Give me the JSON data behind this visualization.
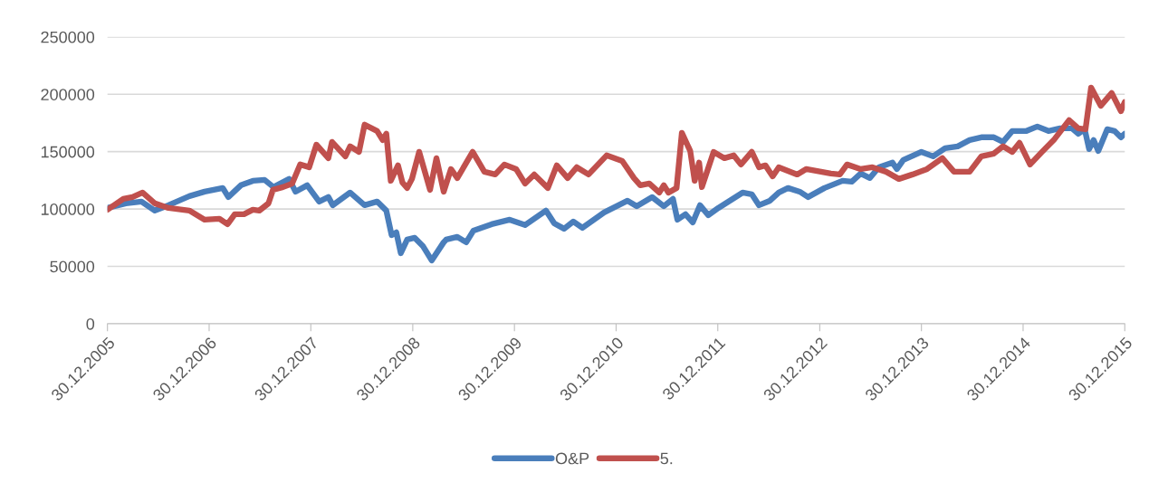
{
  "chart_data": {
    "type": "line",
    "ylim": [
      0,
      250000
    ],
    "yticks": [
      0,
      50000,
      100000,
      150000,
      200000,
      250000
    ],
    "xlim": [
      "2005-12-30",
      "2015-12-30"
    ],
    "xticks": [
      {
        "value": "2005-12-30",
        "label": "30.12.2005"
      },
      {
        "value": "2006-12-30",
        "label": "30.12.2006"
      },
      {
        "value": "2007-12-30",
        "label": "30.12.2007"
      },
      {
        "value": "2008-12-30",
        "label": "30.12.2008"
      },
      {
        "value": "2009-12-30",
        "label": "30.12.2009"
      },
      {
        "value": "2010-12-30",
        "label": "30.12.2010"
      },
      {
        "value": "2011-12-30",
        "label": "30.12.2011"
      },
      {
        "value": "2012-12-30",
        "label": "30.12.2012"
      },
      {
        "value": "2013-12-30",
        "label": "30.12.2013"
      },
      {
        "value": "2014-12-30",
        "label": "30.12.2014"
      },
      {
        "value": "2015-12-30",
        "label": "30.12.2015"
      }
    ],
    "grid": "y",
    "legend": "bottom",
    "marker": "none",
    "line_style": "solid",
    "series": [
      {
        "name": "O&P",
        "color": "#4a7ebb",
        "x": [
          "2005-12-30",
          "2006-03-06",
          "2006-05-01",
          "2006-06-18",
          "2006-08-06",
          "2006-10-20",
          "2006-12-14",
          "2007-02-17",
          "2007-03-09",
          "2007-04-23",
          "2007-06-05",
          "2007-07-17",
          "2007-08-18",
          "2007-10-13",
          "2007-11-05",
          "2007-12-17",
          "2008-01-29",
          "2008-03-02",
          "2008-03-18",
          "2008-05-19",
          "2008-07-10",
          "2008-08-24",
          "2008-09-26",
          "2008-10-15",
          "2008-11-01",
          "2008-11-17",
          "2008-12-10",
          "2009-01-06",
          "2009-02-04",
          "2009-03-08",
          "2009-04-20",
          "2009-04-29",
          "2009-06-08",
          "2009-07-10",
          "2009-08-05",
          "2009-10-09",
          "2009-12-13",
          "2010-02-06",
          "2010-04-22",
          "2010-05-22",
          "2010-06-26",
          "2010-07-29",
          "2010-08-31",
          "2010-11-17",
          "2011-02-09",
          "2011-03-14",
          "2011-05-08",
          "2011-06-19",
          "2011-07-22",
          "2011-08-07",
          "2011-09-05",
          "2011-10-01",
          "2011-10-27",
          "2011-11-26",
          "2012-01-01",
          "2012-03-28",
          "2012-04-30",
          "2012-05-26",
          "2012-07-04",
          "2012-08-05",
          "2012-09-07",
          "2012-10-19",
          "2012-11-18",
          "2013-01-16",
          "2013-03-22",
          "2013-04-24",
          "2013-05-26",
          "2013-06-28",
          "2013-07-30",
          "2013-09-17",
          "2013-10-03",
          "2013-10-26",
          "2013-12-30",
          "2014-02-10",
          "2014-03-25",
          "2014-05-09",
          "2014-06-21",
          "2014-08-02",
          "2014-09-16",
          "2014-10-19",
          "2014-11-21",
          "2015-01-11",
          "2015-02-19",
          "2015-03-31",
          "2015-05-12",
          "2015-06-23",
          "2015-07-16",
          "2015-08-08",
          "2015-08-24",
          "2015-09-09",
          "2015-09-26",
          "2015-10-28",
          "2015-11-23",
          "2015-12-16",
          "2015-12-30"
        ],
        "values": [
          100900,
          104900,
          106500,
          98600,
          103300,
          111200,
          115100,
          118300,
          110400,
          120700,
          124600,
          125400,
          119100,
          126200,
          115100,
          120700,
          106500,
          110400,
          103300,
          114300,
          103300,
          106500,
          98600,
          77300,
          79600,
          61500,
          73300,
          74900,
          67800,
          55200,
          71000,
          73300,
          75700,
          71000,
          81200,
          86700,
          90700,
          86000,
          98600,
          87500,
          82800,
          89100,
          83600,
          97000,
          107200,
          102500,
          110400,
          102500,
          108800,
          90700,
          95400,
          88300,
          103300,
          94600,
          100900,
          114300,
          112800,
          103300,
          107200,
          114300,
          118300,
          115100,
          110400,
          118300,
          124600,
          123800,
          130900,
          127000,
          136400,
          140400,
          134800,
          142700,
          149800,
          145900,
          153000,
          154600,
          160100,
          162500,
          162500,
          158500,
          168000,
          168000,
          171900,
          168000,
          170300,
          170300,
          165600,
          169500,
          152200,
          160100,
          150600,
          169500,
          168000,
          162500,
          165600
        ]
      },
      {
        "name": "5.",
        "color": "#c0504d",
        "x": [
          "2005-12-30",
          "2006-02-25",
          "2006-03-30",
          "2006-05-05",
          "2006-06-18",
          "2006-08-06",
          "2006-10-20",
          "2006-12-14",
          "2007-02-05",
          "2007-03-06",
          "2007-04-01",
          "2007-05-04",
          "2007-06-05",
          "2007-06-28",
          "2007-07-31",
          "2007-08-16",
          "2007-09-21",
          "2007-10-24",
          "2007-11-22",
          "2007-12-24",
          "2008-01-19",
          "2008-03-02",
          "2008-03-15",
          "2008-05-02",
          "2008-05-19",
          "2008-06-20",
          "2008-07-10",
          "2008-08-24",
          "2008-09-13",
          "2008-09-26",
          "2008-10-12",
          "2008-11-07",
          "2008-11-23",
          "2008-12-10",
          "2008-12-27",
          "2009-01-22",
          "2009-03-02",
          "2009-03-25",
          "2009-04-20",
          "2009-05-16",
          "2009-06-08",
          "2009-08-02",
          "2009-09-13",
          "2009-10-22",
          "2009-11-24",
          "2010-01-05",
          "2010-02-06",
          "2010-03-11",
          "2010-04-29",
          "2010-05-31",
          "2010-07-09",
          "2010-08-11",
          "2010-09-22",
          "2010-11-26",
          "2011-01-21",
          "2011-03-04",
          "2011-03-27",
          "2011-04-28",
          "2011-06-03",
          "2011-06-19",
          "2011-07-06",
          "2011-08-04",
          "2011-08-23",
          "2011-09-22",
          "2011-10-08",
          "2011-10-24",
          "2011-11-03",
          "2011-12-15",
          "2012-01-23",
          "2012-02-25",
          "2012-03-22",
          "2012-04-30",
          "2012-05-26",
          "2012-06-18",
          "2012-07-14",
          "2012-08-05",
          "2012-10-10",
          "2012-11-11",
          "2013-02-08",
          "2013-03-12",
          "2013-04-07",
          "2013-05-26",
          "2013-07-07",
          "2013-08-25",
          "2013-10-10",
          "2013-11-28",
          "2014-01-19",
          "2014-03-15",
          "2014-04-26",
          "2014-06-21",
          "2014-08-02",
          "2014-09-16",
          "2014-10-19",
          "2014-11-21",
          "2014-12-17",
          "2015-01-24",
          "2015-03-08",
          "2015-04-19",
          "2015-06-13",
          "2015-07-16",
          "2015-08-11",
          "2015-08-31",
          "2015-10-05",
          "2015-11-13",
          "2015-12-16",
          "2015-12-30"
        ],
        "values": [
          99400,
          108800,
          110400,
          114300,
          104900,
          100900,
          98600,
          90700,
          91500,
          86700,
          95400,
          95400,
          99400,
          98600,
          104900,
          116700,
          119100,
          122200,
          138800,
          136400,
          156100,
          144300,
          158500,
          145900,
          154600,
          149800,
          173500,
          168000,
          160100,
          165600,
          124600,
          138000,
          123000,
          118300,
          126200,
          149800,
          116700,
          144300,
          115100,
          134800,
          127000,
          149800,
          132500,
          130100,
          138800,
          134800,
          122200,
          130100,
          118300,
          138000,
          127000,
          136400,
          130100,
          146700,
          141900,
          127000,
          120700,
          122200,
          114300,
          120700,
          114300,
          118300,
          166400,
          150600,
          124600,
          140400,
          119100,
          149800,
          144300,
          146700,
          138800,
          149800,
          136400,
          138000,
          128500,
          136400,
          130100,
          134800,
          130900,
          130100,
          138800,
          134800,
          136400,
          132500,
          126200,
          130100,
          134800,
          144300,
          132500,
          132500,
          145900,
          148300,
          154600,
          149800,
          157700,
          138800,
          149800,
          160100,
          177400,
          170300,
          169500,
          205800,
          190000,
          201100,
          185300,
          193200
        ]
      }
    ]
  }
}
